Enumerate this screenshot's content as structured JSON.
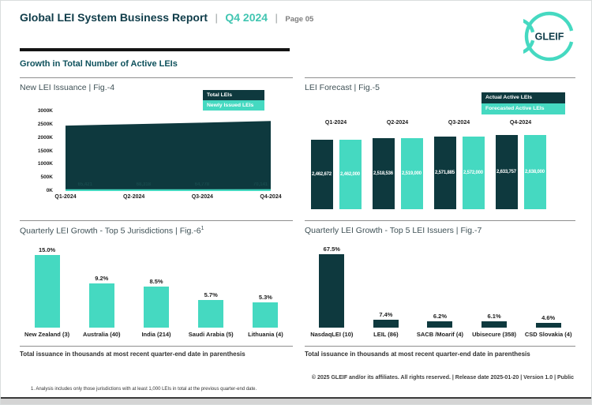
{
  "colors": {
    "dark_teal": "#0e393e",
    "turquoise": "#45d9c1",
    "header_navy": "#0f3c49",
    "accent_teal": "#41c5b1",
    "section_teal": "#0e515c",
    "divider_gray": "#8f8f8f"
  },
  "header": {
    "title": "Global LEI System Business Report",
    "sep": "|",
    "period": "Q4 2024",
    "page_label": "Page 05",
    "logo_text": "GLEIF"
  },
  "section_title": "Growth in Total Number of Active LEIs",
  "figures": {
    "fig4": {
      "title": "New LEI Issuance | Fig.-4",
      "legend": [
        "Total LEIs",
        "Newly Issued LEIs"
      ]
    },
    "fig5": {
      "title": "LEI Forecast | Fig.-5",
      "legend": [
        "Actual Active LEIs",
        "Forecasted Active LEIs"
      ]
    },
    "fig6": {
      "title": "Quarterly LEI Growth - Top 5 Jurisdictions | Fig.-6",
      "title_sup": "1"
    },
    "fig7": {
      "title": "Quarterly LEI Growth - Top 5 LEI Issuers | Fig.-7"
    }
  },
  "notes": {
    "issuance_note_left": "Total issuance in thousands at most recent quarter-end date in parenthesis",
    "issuance_note_right": "Total issuance in thousands at most recent quarter-end date in parenthesis",
    "footnote": "1. Analysis includes only those jurisdictions with at least 1,000 LEIs in total at the previous quarter-end date.",
    "copyright": "© 2025 GLEIF and/or its affiliates. All rights reserved. | Release date 2025-01-20 | Version 1.0 | Public"
  },
  "chart_data": [
    {
      "id": "fig4",
      "type": "area",
      "title": "New LEI Issuance | Fig.-4",
      "x": [
        "Q1-2024",
        "Q2-2024",
        "Q3-2024",
        "Q4-2024"
      ],
      "y_ticks": [
        "3000K",
        "2500K",
        "2000K",
        "1500K",
        "1000K",
        "500K",
        "0K"
      ],
      "ylim": [
        0,
        3000000
      ],
      "legend_position": "top-right",
      "grid": false,
      "series": [
        {
          "name": "Total LEIs",
          "values": [
            2462672,
            2518536,
            2571885,
            2633757
          ]
        },
        {
          "name": "Newly Issued LEIs",
          "values": [
            65421,
            68318,
            64778,
            70141
          ],
          "labels": [
            "65,421",
            "68,318",
            "64,778",
            "70,141"
          ]
        }
      ]
    },
    {
      "id": "fig5",
      "type": "bar",
      "title": "LEI Forecast | Fig.-5",
      "x": [
        "Q1-2024",
        "Q2-2024",
        "Q3-2024",
        "Q4-2024"
      ],
      "legend_position": "top-right",
      "grid": false,
      "series": [
        {
          "name": "Actual Active LEIs",
          "values": [
            2462672,
            2518536,
            2571885,
            2633757
          ],
          "labels": [
            "2,462,672",
            "2,518,536",
            "2,571,885",
            "2,633,757"
          ]
        },
        {
          "name": "Forecasted Active LEIs",
          "values": [
            2462000,
            2519000,
            2572000,
            2638000
          ],
          "labels": [
            "2,462,000",
            "2,519,000",
            "2,572,000",
            "2,638,000"
          ]
        }
      ]
    },
    {
      "id": "fig6",
      "type": "bar",
      "title": "Quarterly LEI Growth - Top 5 Jurisdictions | Fig.-6¹",
      "categories": [
        "New Zealand (3)",
        "Australia (40)",
        "India (214)",
        "Saudi Arabia (5)",
        "Lithuania (4)"
      ],
      "values": [
        15.0,
        9.2,
        8.5,
        5.7,
        5.3
      ],
      "labels": [
        "15.0%",
        "9.2%",
        "8.5%",
        "5.7%",
        "5.3%"
      ]
    },
    {
      "id": "fig7",
      "type": "bar",
      "title": "Quarterly LEI Growth - Top 5 LEI Issuers | Fig.-7",
      "categories": [
        "NasdaqLEI (10)",
        "LEIL (86)",
        "SACB /Moarif (4)",
        "Ubisecure (358)",
        "CSD Slovakia (4)"
      ],
      "values": [
        67.5,
        7.4,
        6.2,
        6.1,
        4.6
      ],
      "labels": [
        "67.5%",
        "7.4%",
        "6.2%",
        "6.1%",
        "4.6%"
      ]
    }
  ]
}
